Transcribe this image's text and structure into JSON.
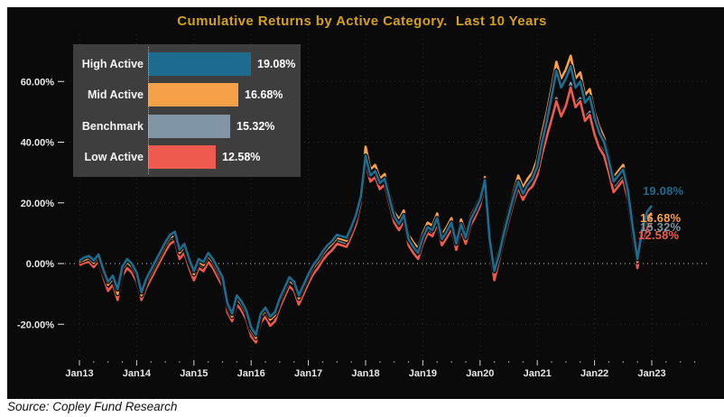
{
  "title": "Cumulative Returns by Active Category.  Last 10 Years",
  "source": "Source: Copley Fund Research",
  "colors": {
    "page": "#ffffff",
    "panel": "#0a0a0a",
    "title": "#d4a11d",
    "axis_text": "#e8e8e8",
    "grid": "#2e2e2e",
    "zero_line": "#d8d8d8",
    "legend_bg": "#3e3e3e",
    "high_active": "#1d6b8e",
    "mid_active": "#f7a04a",
    "benchmark": "#8096a6",
    "low_active": "#ee5a4e"
  },
  "legend": {
    "items": [
      {
        "label": "High Active",
        "value_label": "19.08%",
        "value_pct": 19.08,
        "color_key": "high_active"
      },
      {
        "label": "Mid Active",
        "value_label": "16.68%",
        "value_pct": 16.68,
        "color_key": "mid_active"
      },
      {
        "label": "Benchmark",
        "value_label": "15.32%",
        "value_pct": 15.32,
        "color_key": "benchmark"
      },
      {
        "label": "Low Active",
        "value_label": "12.58%",
        "value_pct": 12.58,
        "color_key": "low_active"
      }
    ]
  },
  "chart_data": {
    "type": "line",
    "title": "Cumulative Returns by Active Category.  Last 10 Years",
    "x_start": "2013-01",
    "x_months_per_point": 1,
    "x_tick_labels": [
      "Jan13",
      "Jan14",
      "Jan15",
      "Jan16",
      "Jan17",
      "Jan18",
      "Jan19",
      "Jan20",
      "Jan21",
      "Jan22",
      "Jan23"
    ],
    "y_ticks": [
      {
        "value": 60,
        "label": "60.00%"
      },
      {
        "value": 40,
        "label": "40.00%"
      },
      {
        "value": 20,
        "label": "20.00%"
      },
      {
        "value": 0,
        "label": "0.00%"
      },
      {
        "value": -20,
        "label": "-20.00%"
      }
    ],
    "ylim": [
      -30,
      75
    ],
    "grid": "dotted",
    "legend_position": "top-left",
    "series": [
      {
        "name": "High Active",
        "color_key": "high_active",
        "final_label": "19.08%",
        "final_value": 19.08,
        "monthly_values": [
          1.0,
          2.0,
          2.5,
          1.0,
          3.0,
          -2.0,
          -6.0,
          -4.0,
          -8.5,
          -1.0,
          1.5,
          0.0,
          -3.0,
          -9.5,
          -5.0,
          -2.0,
          1.0,
          4.0,
          7.0,
          9.5,
          10.5,
          4.5,
          6.5,
          1.5,
          -2.5,
          1.5,
          0.5,
          3.5,
          1.5,
          -1.5,
          -4.5,
          -13.0,
          -16.5,
          -10.5,
          -12.5,
          -15.5,
          -21.0,
          -23.5,
          -16.5,
          -14.5,
          -17.5,
          -16.0,
          -11.5,
          -8.0,
          -4.5,
          -6.0,
          -10.5,
          -7.0,
          -3.5,
          -0.5,
          1.5,
          4.0,
          6.0,
          7.5,
          9.5,
          9.0,
          8.5,
          12.0,
          16.0,
          22.0,
          35.5,
          29.0,
          30.5,
          26.5,
          28.0,
          21.5,
          15.5,
          13.0,
          16.0,
          8.0,
          5.5,
          3.5,
          8.5,
          12.0,
          11.0,
          15.0,
          8.0,
          10.5,
          13.5,
          6.5,
          13.0,
          8.5,
          14.5,
          17.5,
          21.0,
          27.5,
          8.0,
          -2.5,
          3.0,
          10.0,
          16.0,
          22.0,
          27.0,
          23.0,
          26.0,
          28.0,
          32.0,
          40.0,
          47.0,
          55.0,
          63.5,
          58.0,
          61.0,
          65.0,
          58.0,
          60.0,
          53.0,
          55.0,
          48.0,
          43.0,
          40.0,
          34.0,
          27.0,
          29.0,
          31.0,
          24.0,
          12.0,
          1.5,
          11.0,
          17.0,
          19.08
        ]
      },
      {
        "name": "Mid Active",
        "color_key": "mid_active",
        "final_label": "16.68%",
        "final_value": 16.68,
        "monthly_values": [
          0.5,
          1.2,
          1.8,
          0.2,
          2.2,
          -3.0,
          -7.0,
          -5.0,
          -10.0,
          -2.0,
          0.5,
          -1.0,
          -4.0,
          -10.5,
          -6.0,
          -3.0,
          0.0,
          3.0,
          6.0,
          8.5,
          9.5,
          3.5,
          5.5,
          0.5,
          -3.5,
          0.5,
          -0.5,
          2.5,
          0.5,
          -2.5,
          -5.5,
          -14.0,
          -17.5,
          -11.5,
          -13.5,
          -16.5,
          -22.0,
          -24.5,
          -17.5,
          -15.5,
          -18.5,
          -17.0,
          -12.5,
          -9.0,
          -5.5,
          -7.0,
          -11.5,
          -8.0,
          -4.5,
          -1.5,
          0.5,
          3.0,
          5.0,
          6.5,
          8.5,
          8.0,
          7.5,
          11.0,
          15.5,
          23.0,
          38.5,
          31.0,
          32.5,
          28.0,
          29.5,
          23.0,
          17.0,
          14.5,
          17.5,
          9.5,
          7.0,
          5.0,
          10.0,
          13.5,
          12.5,
          16.5,
          9.5,
          12.0,
          15.0,
          8.0,
          14.5,
          10.0,
          15.5,
          18.5,
          22.0,
          28.5,
          9.0,
          -1.0,
          4.5,
          11.5,
          17.5,
          23.5,
          29.0,
          25.0,
          28.0,
          30.0,
          34.5,
          43.0,
          50.0,
          58.0,
          66.5,
          61.0,
          64.0,
          68.5,
          61.0,
          63.0,
          55.5,
          57.5,
          50.0,
          45.0,
          41.5,
          35.5,
          28.5,
          30.5,
          32.5,
          25.5,
          13.0,
          0.5,
          9.5,
          15.0,
          16.68
        ]
      },
      {
        "name": "Benchmark",
        "color_key": "benchmark",
        "final_label": "15.32%",
        "final_value": 15.32,
        "monthly_values": [
          0.0,
          0.8,
          1.2,
          -0.5,
          1.5,
          -3.8,
          -8.0,
          -6.0,
          -11.0,
          -3.0,
          -0.5,
          -2.0,
          -5.0,
          -11.0,
          -7.0,
          -4.0,
          -1.0,
          2.0,
          5.0,
          7.5,
          8.5,
          2.5,
          4.5,
          -0.5,
          -4.5,
          -0.5,
          -1.5,
          1.5,
          -0.5,
          -3.5,
          -6.5,
          -15.0,
          -18.0,
          -12.5,
          -14.5,
          -17.5,
          -23.0,
          -25.0,
          -18.5,
          -16.5,
          -19.5,
          -18.0,
          -13.5,
          -10.0,
          -6.5,
          -8.0,
          -12.5,
          -9.0,
          -5.5,
          -2.5,
          -0.5,
          2.0,
          4.0,
          5.5,
          7.5,
          7.0,
          6.5,
          10.0,
          14.0,
          21.0,
          34.0,
          28.0,
          29.5,
          25.5,
          27.0,
          20.5,
          14.5,
          12.0,
          15.0,
          7.0,
          4.5,
          2.5,
          7.5,
          11.0,
          10.0,
          14.0,
          7.0,
          9.5,
          12.5,
          5.5,
          12.0,
          7.5,
          13.5,
          16.5,
          20.0,
          26.5,
          7.0,
          -4.0,
          2.0,
          9.0,
          15.0,
          21.0,
          26.0,
          22.0,
          25.0,
          26.5,
          30.0,
          37.0,
          43.0,
          48.5,
          54.5,
          49.5,
          53.0,
          59.5,
          52.5,
          54.5,
          48.0,
          50.0,
          43.5,
          39.0,
          36.5,
          31.0,
          24.5,
          26.5,
          28.5,
          22.0,
          10.0,
          0.0,
          9.0,
          14.0,
          15.32
        ]
      },
      {
        "name": "Low Active",
        "color_key": "low_active",
        "final_label": "12.58%",
        "final_value": 12.58,
        "monthly_values": [
          -0.5,
          0.2,
          0.6,
          -1.2,
          0.8,
          -4.5,
          -9.0,
          -7.0,
          -12.0,
          -4.0,
          -1.5,
          -3.0,
          -6.0,
          -12.0,
          -8.0,
          -5.0,
          -2.0,
          1.0,
          4.0,
          6.5,
          7.5,
          1.5,
          3.5,
          -1.5,
          -5.5,
          -1.5,
          -2.5,
          0.5,
          -1.5,
          -4.5,
          -7.5,
          -16.0,
          -19.0,
          -13.5,
          -15.5,
          -18.5,
          -24.0,
          -26.0,
          -19.5,
          -17.5,
          -20.5,
          -19.0,
          -14.5,
          -11.0,
          -7.5,
          -9.0,
          -13.5,
          -10.0,
          -6.5,
          -3.5,
          -1.5,
          1.0,
          3.0,
          4.5,
          6.5,
          6.0,
          5.5,
          9.0,
          13.0,
          20.0,
          33.0,
          27.0,
          28.5,
          24.5,
          26.0,
          19.5,
          13.5,
          11.0,
          14.0,
          6.0,
          3.5,
          1.5,
          6.5,
          10.0,
          9.0,
          13.0,
          6.0,
          8.5,
          11.5,
          4.5,
          11.0,
          6.5,
          12.5,
          15.5,
          19.0,
          25.5,
          5.5,
          -5.5,
          1.0,
          8.0,
          14.0,
          20.0,
          25.0,
          21.0,
          24.0,
          25.5,
          29.0,
          36.0,
          42.0,
          47.5,
          53.5,
          48.5,
          52.0,
          58.0,
          51.5,
          53.5,
          47.0,
          49.0,
          42.5,
          38.0,
          35.5,
          30.0,
          23.5,
          25.5,
          27.5,
          21.0,
          9.0,
          -1.5,
          7.5,
          12.0,
          12.58
        ]
      }
    ]
  }
}
